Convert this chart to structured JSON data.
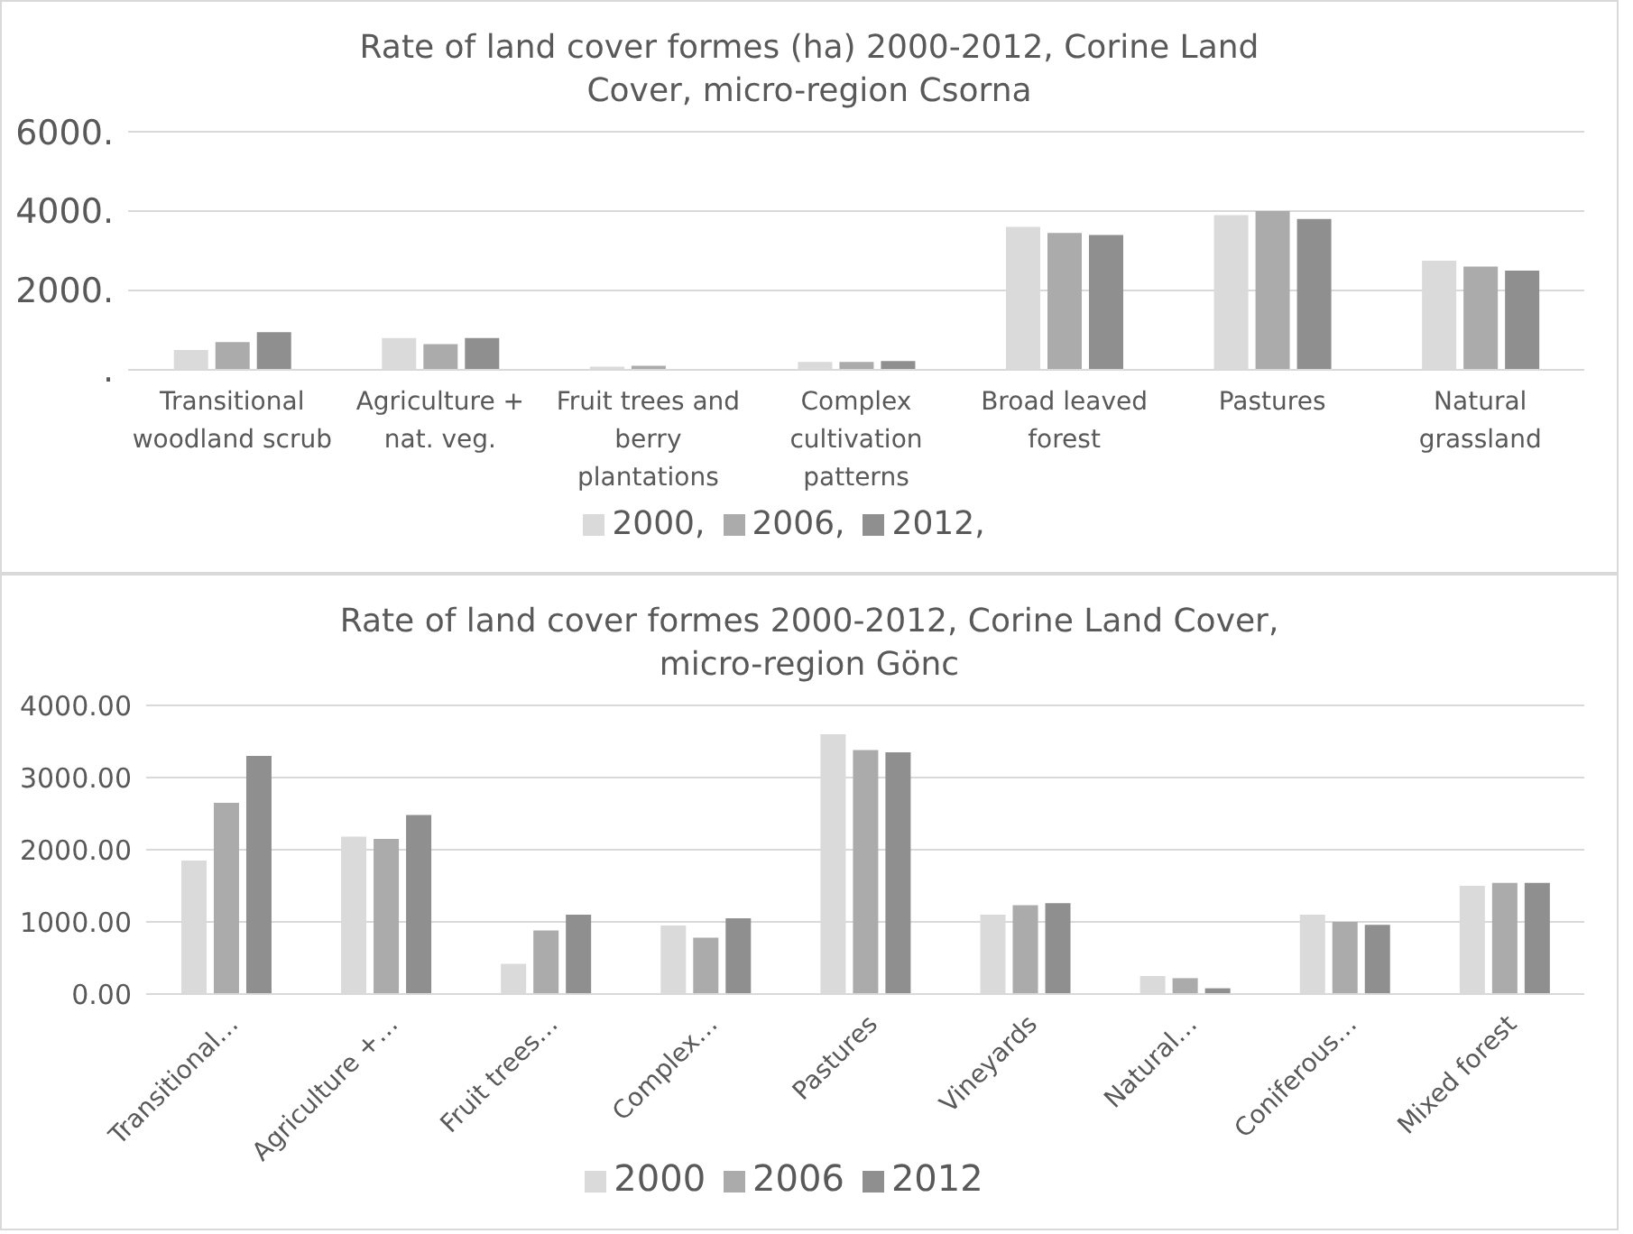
{
  "chart_data": [
    {
      "type": "bar",
      "title": "Rate of land cover formes (ha) 2000-2012, Corine Land Cover, micro-region Csorna",
      "categories": [
        "Transitional woodland scrub",
        "Agriculture + nat. veg.",
        "Fruit trees and berry plantations",
        "Complex cultivation patterns",
        "Broad leaved forest",
        "Pastures",
        "Natural grassland"
      ],
      "series": [
        {
          "name": "2000,",
          "color": "#dadada",
          "values": [
            500,
            800,
            80,
            200,
            3600,
            3900,
            2750
          ]
        },
        {
          "name": "2006,",
          "color": "#ababab",
          "values": [
            700,
            650,
            100,
            200,
            3450,
            4000,
            2600
          ]
        },
        {
          "name": "2012,",
          "color": "#8f8f8f",
          "values": [
            950,
            800,
            0,
            220,
            3400,
            3800,
            2500
          ]
        }
      ],
      "ylim": [
        0,
        6000
      ],
      "yticks": [
        {
          "value": 0,
          "label": "."
        },
        {
          "value": 2000,
          "label": "2000."
        },
        {
          "value": 4000,
          "label": "4000."
        },
        {
          "value": 6000,
          "label": "6000."
        }
      ],
      "grid": "y",
      "legend": "bottom"
    },
    {
      "type": "bar",
      "title": "Rate of land cover formes 2000-2012, Corine Land Cover, micro-region Gönc",
      "categories": [
        "Transitional…",
        "Agriculture +…",
        "Fruit trees…",
        "Complex…",
        "Pastures",
        "Vineyards",
        "Natural…",
        "Coniferous…",
        "Mixed forest"
      ],
      "series": [
        {
          "name": "2000",
          "color": "#dadada",
          "values": [
            1850,
            2180,
            420,
            950,
            3600,
            1100,
            250,
            1100,
            1500
          ]
        },
        {
          "name": "2006",
          "color": "#ababab",
          "values": [
            2650,
            2150,
            880,
            780,
            3380,
            1230,
            220,
            1000,
            1540
          ]
        },
        {
          "name": "2012",
          "color": "#8f8f8f",
          "values": [
            3300,
            2480,
            1100,
            1050,
            3350,
            1260,
            80,
            960,
            1540
          ]
        }
      ],
      "ylim": [
        0,
        4000
      ],
      "yticks": [
        {
          "value": 0,
          "label": "0.00"
        },
        {
          "value": 1000,
          "label": "1000.00"
        },
        {
          "value": 2000,
          "label": "2000.00"
        },
        {
          "value": 3000,
          "label": "3000.00"
        },
        {
          "value": 4000,
          "label": "4000.00"
        }
      ],
      "grid": "y",
      "legend": "bottom"
    }
  ]
}
